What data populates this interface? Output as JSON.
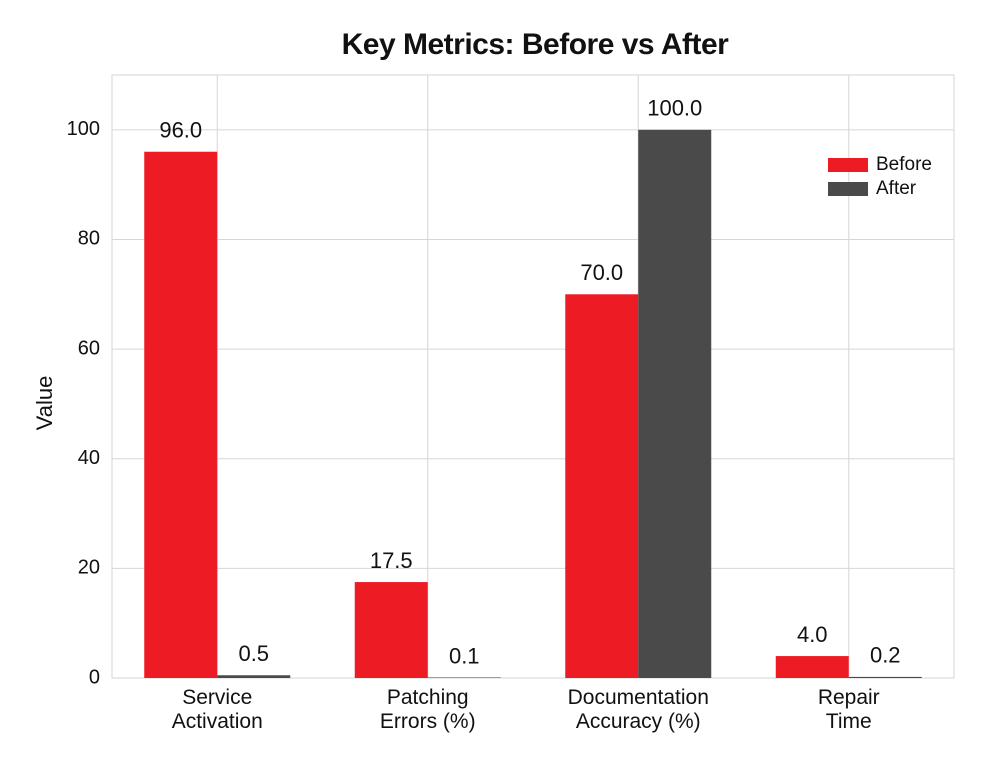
{
  "chart_data": {
    "type": "bar",
    "title": "Key Metrics: Before vs After",
    "y_label": "Value",
    "categories": [
      "Service\nActivation",
      "Patching\nErrors (%)",
      "Documentation\nAccuracy (%)",
      "Repair\nTime"
    ],
    "series": [
      {
        "name": "Before",
        "color": "#ed1c24",
        "values": [
          96,
          17.5,
          70,
          4
        ],
        "value_labels": [
          "96.0",
          "17.5",
          "70.0",
          "4.0"
        ]
      },
      {
        "name": "After",
        "color": "#4a4a4a",
        "values": [
          0.5,
          0.1,
          100,
          0.2
        ],
        "value_labels": [
          "0.5",
          "0.1",
          "100.0",
          "0.2"
        ]
      }
    ],
    "ylim": [
      0,
      110
    ],
    "yticks": [
      0,
      20,
      40,
      60,
      80,
      100
    ],
    "grid": true,
    "legend": "upper right"
  }
}
